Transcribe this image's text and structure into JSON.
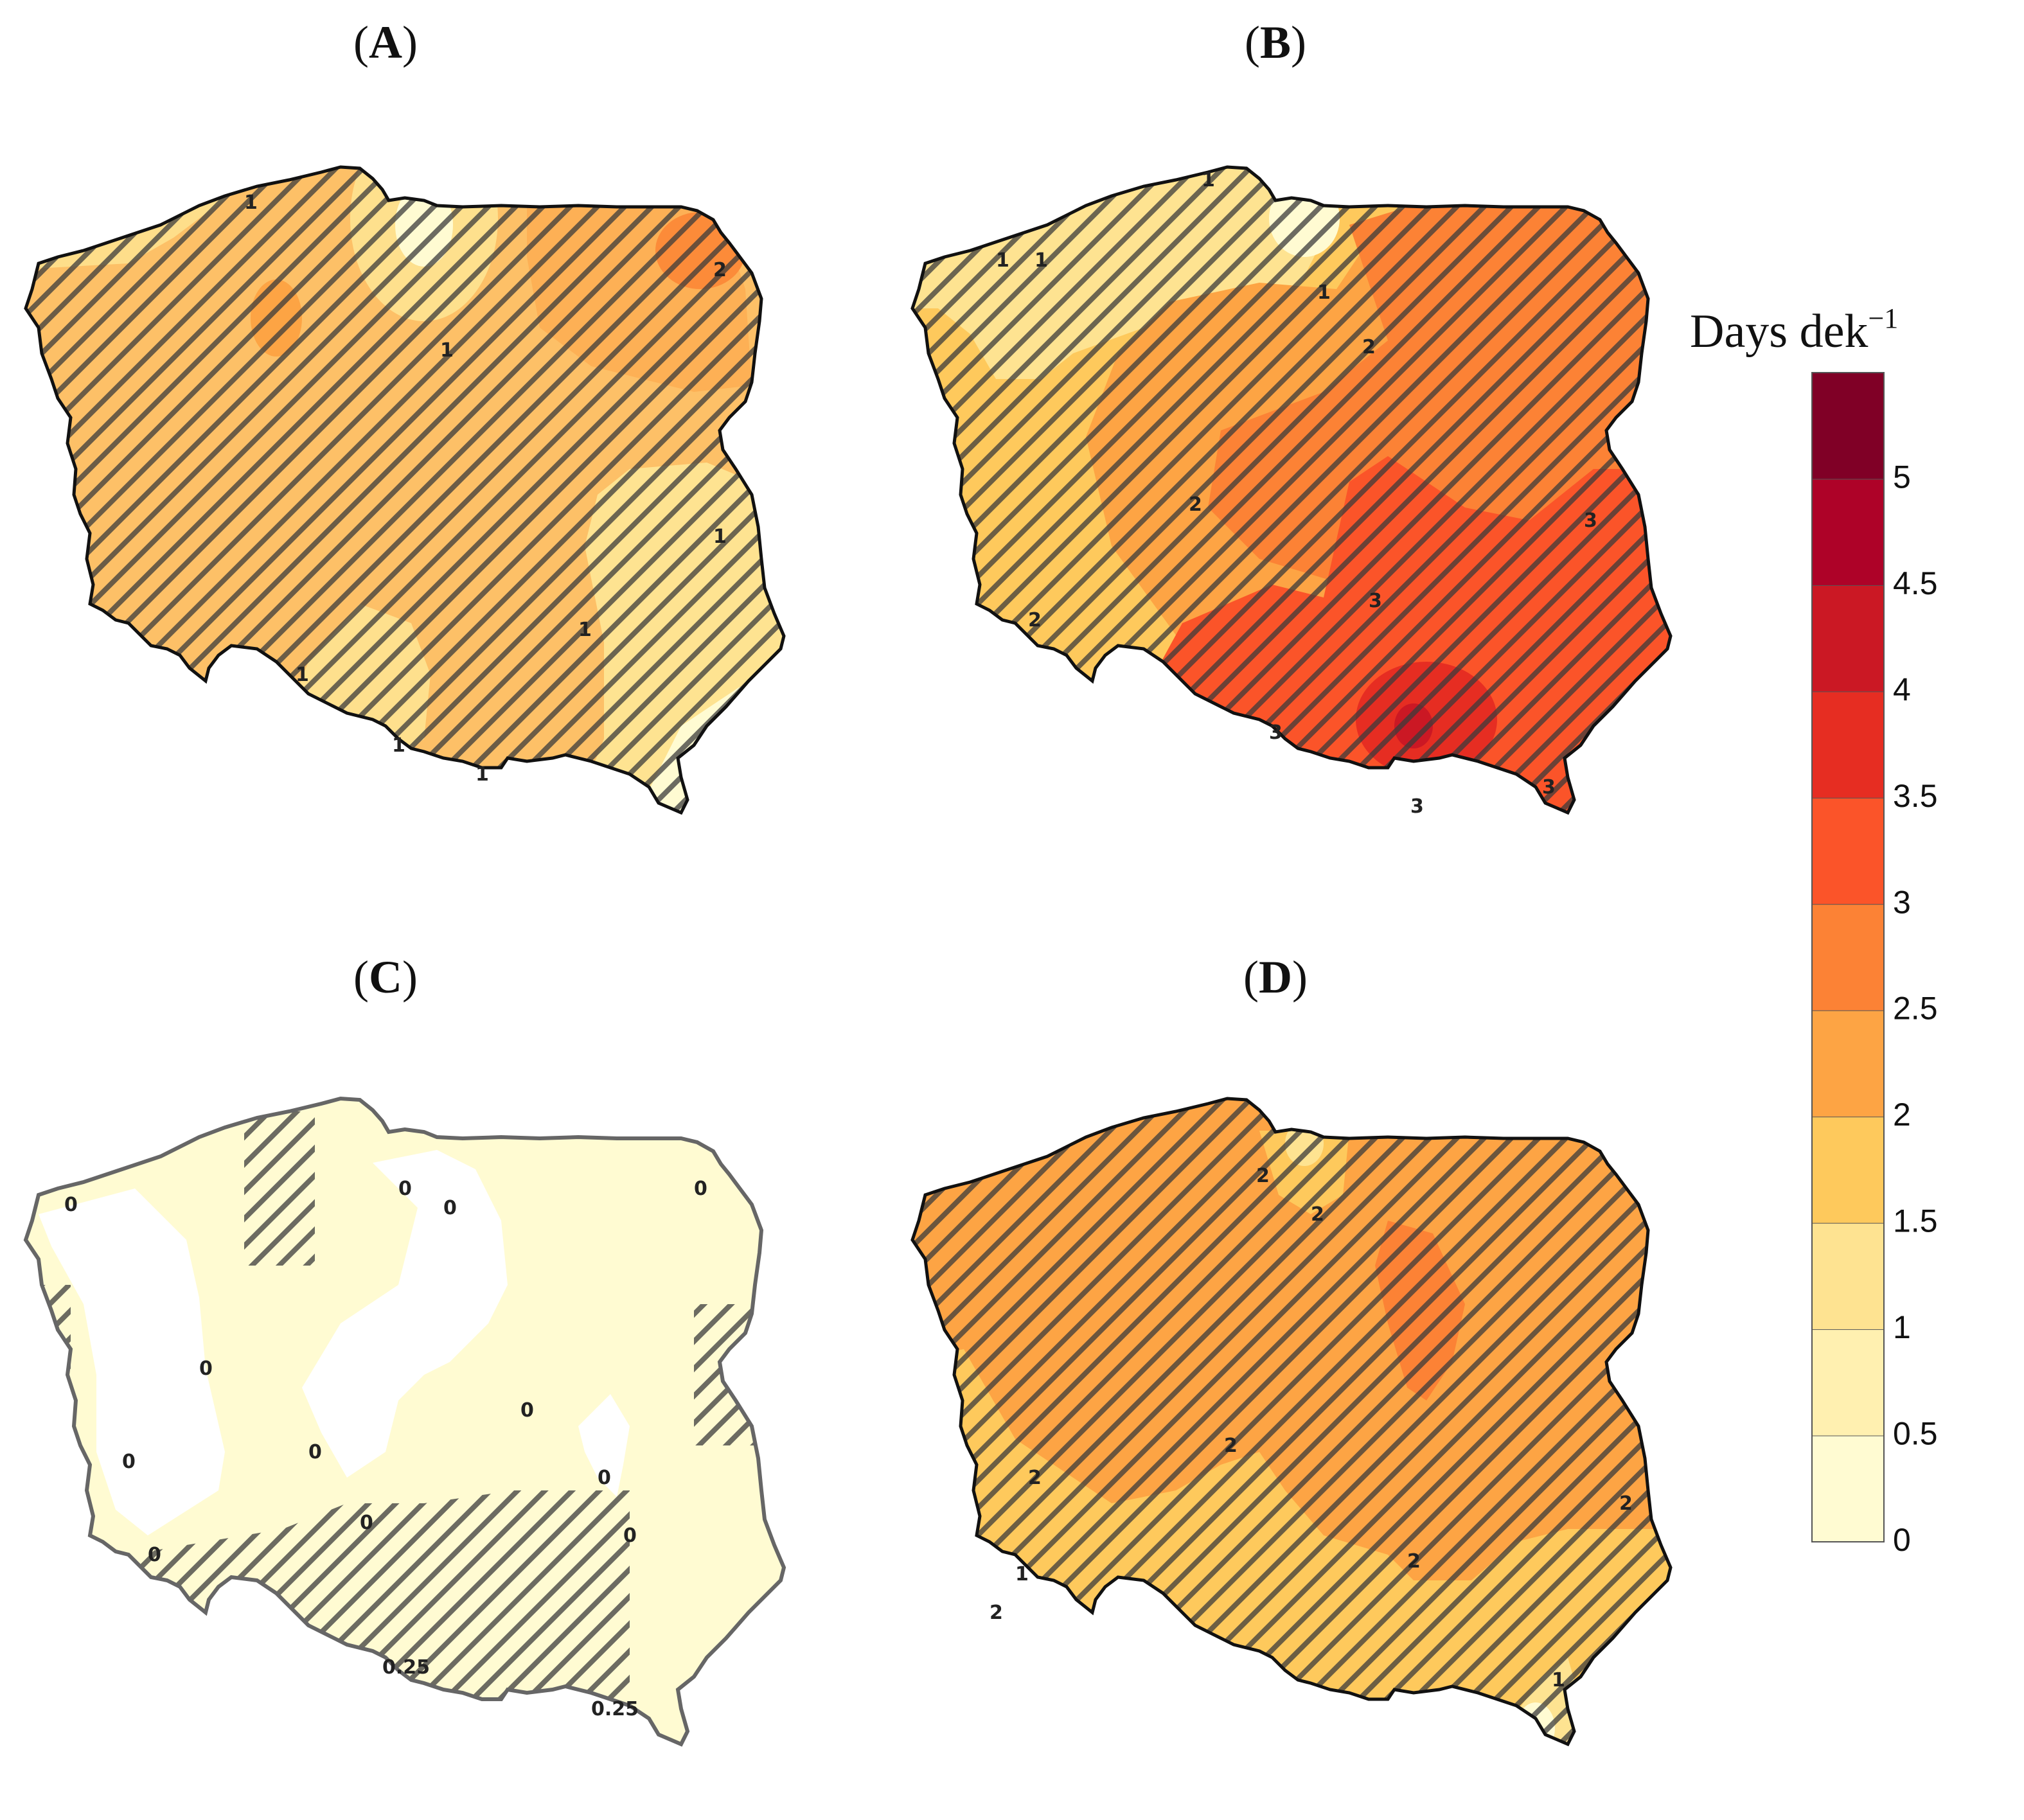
{
  "panels": [
    {
      "id": "A",
      "label": "A",
      "labels": [
        "1",
        "1",
        "1",
        "1",
        "1",
        "1",
        "2",
        "1"
      ]
    },
    {
      "id": "B",
      "label": "B",
      "labels": [
        "1",
        "1",
        "1",
        "1",
        "2",
        "2",
        "2",
        "3",
        "3",
        "3",
        "3",
        "3"
      ]
    },
    {
      "id": "C",
      "label": "C",
      "labels": [
        "0",
        "0",
        "0",
        "0",
        "0",
        "0",
        "0",
        "0",
        "0",
        "0",
        "0",
        "0",
        "0.25",
        "0.25"
      ]
    },
    {
      "id": "D",
      "label": "D",
      "labels": [
        "2",
        "2",
        "2",
        "2",
        "2",
        "2",
        "2",
        "1",
        "1"
      ]
    }
  ],
  "legend": {
    "title": "Days dek",
    "title_superscript": "−1",
    "ticks": [
      "0",
      "0.5",
      "1",
      "1.5",
      "2",
      "2.5",
      "3",
      "3.5",
      "4",
      "4.5",
      "5"
    ],
    "colors": [
      "#fffbd2",
      "#fff0b0",
      "#fee391",
      "#fec95c",
      "#fda444",
      "#fc8235",
      "#fb5429",
      "#e62d22",
      "#cb1824",
      "#ae0228",
      "#800026"
    ]
  },
  "colors": {
    "hatch": "#3a3a3a",
    "outline": "#111111",
    "outline_c": "#666666"
  }
}
